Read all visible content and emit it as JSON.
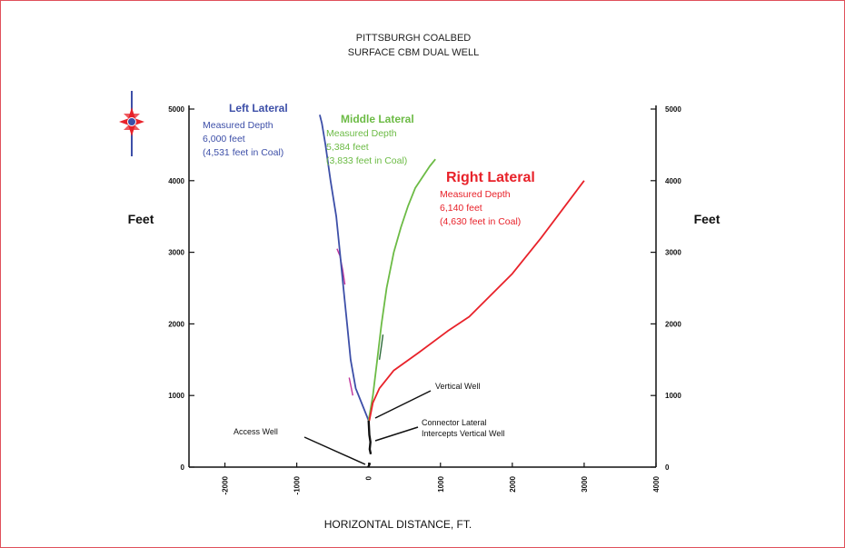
{
  "colors": {
    "left": "#3d4fa8",
    "middle": "#6cbb45",
    "right": "#e8222a",
    "black": "#111111",
    "magenta": "#c0349a",
    "frame": "#e0505a"
  },
  "chart_data": {
    "type": "line",
    "title": "PITTSBURGH COALBED",
    "subtitle": "SURFACE CBM DUAL WELL",
    "xlabel": "HORIZONTAL DISTANCE, FT.",
    "ylabel_left": "Feet",
    "ylabel_right": "Feet",
    "xlim": [
      -2500,
      4000
    ],
    "ylim": [
      0,
      5000
    ],
    "x_ticks": [
      "-2000",
      "-1000",
      "0",
      "1000",
      "2000",
      "3000",
      "4000"
    ],
    "y_ticks": [
      "0",
      "1000",
      "2000",
      "3000",
      "4000",
      "5000"
    ],
    "series": [
      {
        "name": "Left Lateral",
        "key": "left",
        "label_lines": [
          "Measured Depth",
          "6,000 feet",
          "(4,531 feet in Coal)"
        ],
        "x": [
          0,
          -80,
          -180,
          -250,
          -300,
          -350,
          -400,
          -450,
          -530,
          -600,
          -650,
          -680
        ],
        "y": [
          650,
          850,
          1100,
          1500,
          2000,
          2500,
          3000,
          3500,
          4000,
          4500,
          4800,
          4920
        ]
      },
      {
        "name": "Middle Lateral",
        "key": "middle",
        "label_lines": [
          "Measured Depth",
          "5,384 feet",
          "(3,833 feet in Coal)"
        ],
        "x": [
          0,
          60,
          120,
          180,
          250,
          350,
          450,
          550,
          650,
          750,
          850,
          930
        ],
        "y": [
          650,
          1000,
          1500,
          2000,
          2500,
          3000,
          3350,
          3650,
          3900,
          4050,
          4200,
          4300
        ]
      },
      {
        "name": "Right Lateral",
        "key": "right",
        "label_lines": [
          "Measured Depth",
          "6,140 feet",
          "(4,630 feet in Coal)"
        ],
        "x": [
          10,
          60,
          150,
          350,
          700,
          1100,
          1400,
          1700,
          2000,
          2400,
          2700,
          3000
        ],
        "y": [
          650,
          900,
          1100,
          1350,
          1600,
          1900,
          2100,
          2400,
          2700,
          3200,
          3600,
          4000
        ]
      }
    ],
    "annotations": [
      "Vertical Well",
      "Connector Lateral",
      "Intercepts Vertical Well",
      "Access Well"
    ]
  }
}
